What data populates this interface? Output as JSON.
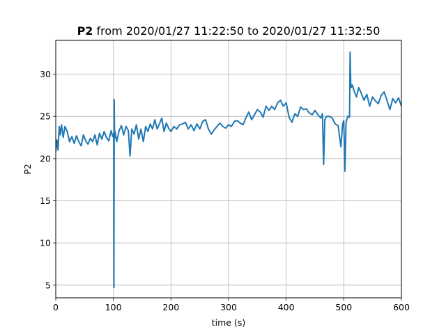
{
  "chart_data": {
    "type": "line",
    "title_bold": "P2",
    "title_rest": " from 2020/01/27 11:22:50 to 2020/01/27 11:32:50",
    "xlabel": "time (s)",
    "ylabel": "P2",
    "xlim": [
      0,
      600
    ],
    "ylim": [
      3.5,
      34
    ],
    "xticks": [
      0,
      100,
      200,
      300,
      400,
      500,
      600
    ],
    "yticks": [
      5,
      10,
      15,
      20,
      25,
      30
    ],
    "grid": true,
    "series": [
      {
        "color": "#1f77b4",
        "x": [
          0,
          2,
          4,
          6,
          8,
          10,
          13,
          16,
          20,
          24,
          28,
          32,
          36,
          40,
          44,
          48,
          52,
          56,
          60,
          64,
          68,
          72,
          76,
          80,
          84,
          88,
          92,
          96,
          99,
          100.5,
          101,
          101.5,
          102,
          102.5,
          103,
          106,
          110,
          114,
          118,
          122,
          126,
          129,
          132,
          136,
          140,
          144,
          148,
          152,
          156,
          160,
          164,
          168,
          172,
          176,
          180,
          184,
          188,
          192,
          196,
          200,
          205,
          210,
          215,
          220,
          225,
          230,
          235,
          240,
          245,
          250,
          255,
          260,
          265,
          270,
          275,
          280,
          285,
          290,
          295,
          300,
          305,
          310,
          315,
          320,
          325,
          330,
          335,
          340,
          345,
          350,
          355,
          360,
          365,
          370,
          375,
          380,
          385,
          390,
          395,
          400,
          405,
          410,
          415,
          420,
          425,
          430,
          435,
          440,
          445,
          450,
          455,
          460,
          463,
          465,
          467,
          470,
          475,
          480,
          485,
          490,
          495,
          498,
          500,
          502,
          504,
          507,
          510,
          511,
          512,
          513,
          515,
          518,
          522,
          526,
          530,
          535,
          540,
          545,
          550,
          555,
          560,
          565,
          570,
          575,
          580,
          585,
          590,
          595,
          600
        ],
        "y": [
          20.8,
          22.2,
          21.0,
          23.8,
          22.8,
          24.0,
          22.5,
          23.8,
          23.2,
          22.0,
          22.6,
          21.8,
          22.7,
          22.0,
          21.5,
          22.8,
          22.1,
          21.7,
          22.4,
          22.0,
          22.8,
          21.6,
          23.0,
          22.3,
          23.2,
          22.5,
          22.1,
          23.3,
          22.6,
          23.0,
          4.7,
          27.0,
          23.5,
          22.4,
          23.2,
          22.0,
          23.3,
          23.9,
          22.8,
          23.8,
          23.3,
          20.3,
          23.5,
          22.9,
          24.0,
          22.3,
          23.5,
          22.0,
          23.8,
          23.2,
          24.1,
          23.5,
          24.6,
          23.5,
          24.1,
          24.8,
          23.2,
          24.2,
          23.6,
          23.2,
          23.8,
          23.5,
          24.0,
          24.1,
          24.3,
          23.5,
          24.0,
          23.3,
          24.1,
          23.5,
          24.4,
          24.6,
          23.5,
          22.9,
          23.4,
          23.8,
          24.2,
          23.8,
          23.6,
          24.0,
          23.8,
          24.4,
          24.5,
          24.2,
          24.0,
          24.8,
          25.5,
          24.6,
          25.2,
          25.8,
          25.5,
          24.9,
          26.2,
          25.7,
          26.2,
          25.8,
          26.6,
          26.9,
          26.2,
          26.6,
          24.9,
          24.3,
          25.3,
          25.0,
          26.1,
          25.8,
          25.9,
          25.4,
          25.2,
          25.7,
          25.2,
          24.8,
          25.3,
          19.3,
          24.6,
          25.0,
          25.0,
          24.8,
          24.1,
          23.9,
          21.4,
          24.1,
          24.5,
          18.5,
          24.3,
          25.0,
          24.9,
          32.6,
          29.0,
          28.4,
          28.7,
          28.0,
          27.3,
          28.4,
          27.8,
          26.9,
          27.6,
          26.2,
          27.3,
          26.8,
          26.5,
          27.5,
          27.9,
          26.9,
          25.8,
          27.1,
          26.6,
          27.2,
          26.2
        ]
      }
    ]
  }
}
